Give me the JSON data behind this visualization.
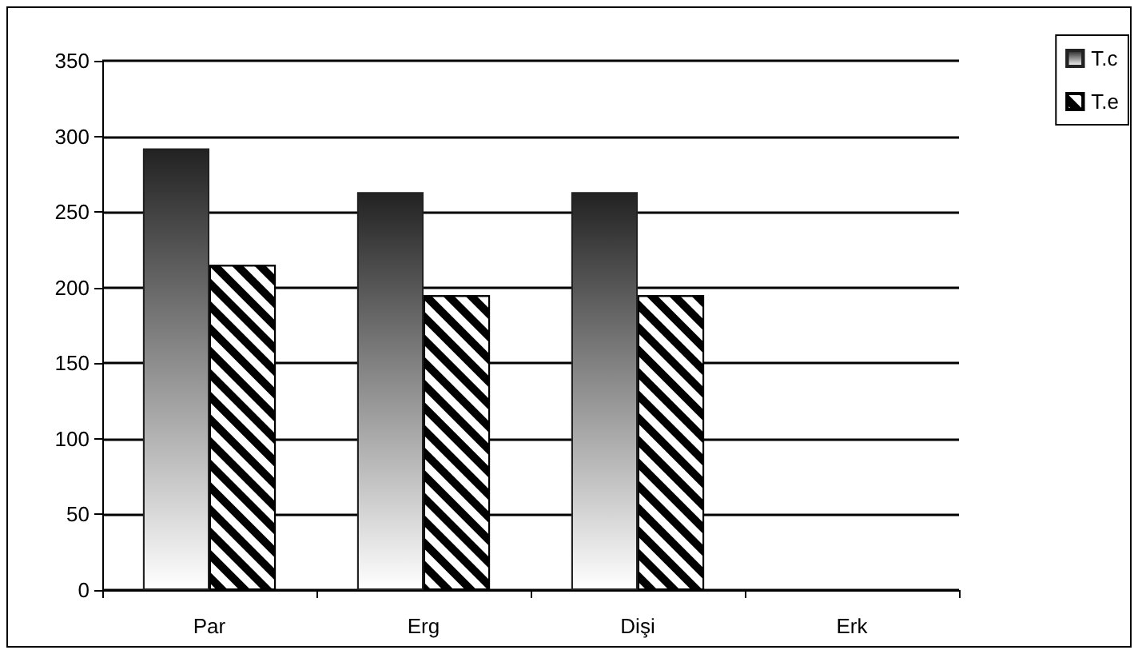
{
  "chart_data": {
    "type": "bar",
    "categories": [
      "Par",
      "Erg",
      "Dişi",
      "Erk"
    ],
    "series": [
      {
        "name": "T.c",
        "color": "#222222",
        "values": [
          292,
          263,
          263,
          null
        ]
      },
      {
        "name": "T.e",
        "color": "#ffffff",
        "values": [
          215,
          195,
          195,
          null
        ]
      }
    ],
    "ylim": [
      0,
      350
    ],
    "yticks": [
      0,
      50,
      100,
      150,
      200,
      250,
      300,
      350
    ],
    "grid": "y",
    "legend": "top right"
  }
}
